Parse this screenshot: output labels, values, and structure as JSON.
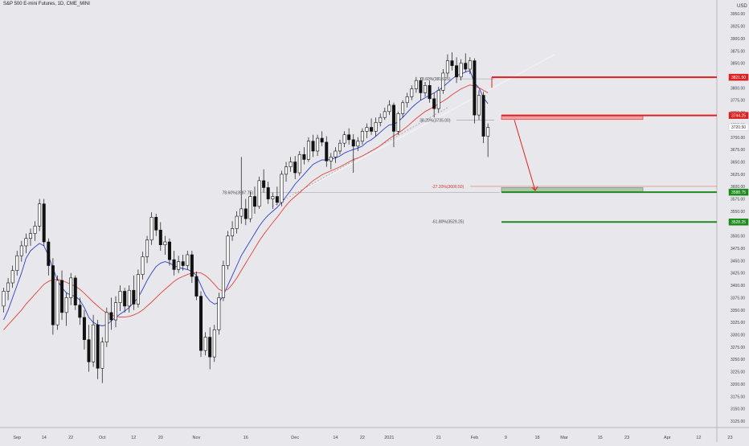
{
  "header": {
    "symbol_title": "S&P 500 E-mini Futures, 1D, CME_MINI",
    "currency": "USD"
  },
  "chart_data": {
    "type": "candlestick",
    "y_ticks": [
      3125,
      3150,
      3175,
      3200,
      3225,
      3250,
      3275,
      3300,
      3325,
      3350,
      3375,
      3400,
      3425,
      3450,
      3475,
      3500,
      3525,
      3550,
      3575,
      3600,
      3625,
      3650,
      3675,
      3700,
      3725,
      3750,
      3775,
      3800,
      3825,
      3850,
      3875,
      3900,
      3925,
      3950
    ],
    "y_tick_labels": [
      "3125.00",
      "3150.00",
      "3175.00",
      "3200.00",
      "3225.00",
      "3250.00",
      "3275.00",
      "3300.00",
      "3325.00",
      "3350.00",
      "3375.00",
      "3400.00",
      "3425.00",
      "3450.00",
      "3475.00",
      "3500.00",
      "3525.00",
      "3550.00",
      "3575.00",
      "3600.00",
      "3625.00",
      "3650.00",
      "3675.00",
      "3700.00",
      "3725.00",
      "3750.00",
      "3775.00",
      "3800.00",
      "3825.00",
      "3850.00",
      "3875.00",
      "3900.00",
      "3925.00",
      "3950.00"
    ],
    "ylim": [
      3112,
      3978
    ],
    "x_ticks": [
      {
        "label": "Sep",
        "bar": 3
      },
      {
        "label": "14",
        "bar": 9
      },
      {
        "label": "22",
        "bar": 15
      },
      {
        "label": "Oct",
        "bar": 22
      },
      {
        "label": "12",
        "bar": 29
      },
      {
        "label": "20",
        "bar": 35
      },
      {
        "label": "Nov",
        "bar": 43
      },
      {
        "label": "16",
        "bar": 54
      },
      {
        "label": "Dec",
        "bar": 65
      },
      {
        "label": "14",
        "bar": 74
      },
      {
        "label": "22",
        "bar": 80
      },
      {
        "label": "2021",
        "bar": 86
      },
      {
        "label": "21",
        "bar": 97
      },
      {
        "label": "Feb",
        "bar": 105
      },
      {
        "label": "9",
        "bar": 112
      },
      {
        "label": "18",
        "bar": 119
      },
      {
        "label": "Mar",
        "bar": 125
      },
      {
        "label": "15",
        "bar": 133
      },
      {
        "label": "23",
        "bar": 139
      },
      {
        "label": "Apr",
        "bar": 148
      },
      {
        "label": "12",
        "bar": 155
      },
      {
        "label": "23",
        "bar": 162
      }
    ],
    "candles": [
      {
        "o": 3358,
        "h": 3395,
        "l": 3345,
        "c": 3388
      },
      {
        "o": 3388,
        "h": 3415,
        "l": 3370,
        "c": 3405
      },
      {
        "o": 3405,
        "h": 3440,
        "l": 3395,
        "c": 3430
      },
      {
        "o": 3430,
        "h": 3470,
        "l": 3420,
        "c": 3460
      },
      {
        "o": 3460,
        "h": 3490,
        "l": 3448,
        "c": 3480
      },
      {
        "o": 3480,
        "h": 3505,
        "l": 3465,
        "c": 3495
      },
      {
        "o": 3495,
        "h": 3515,
        "l": 3480,
        "c": 3505
      },
      {
        "o": 3505,
        "h": 3530,
        "l": 3490,
        "c": 3520
      },
      {
        "o": 3520,
        "h": 3575,
        "l": 3510,
        "c": 3565
      },
      {
        "o": 3565,
        "h": 3575,
        "l": 3480,
        "c": 3488
      },
      {
        "o": 3488,
        "h": 3495,
        "l": 3420,
        "c": 3440
      },
      {
        "o": 3440,
        "h": 3455,
        "l": 3300,
        "c": 3320
      },
      {
        "o": 3320,
        "h": 3420,
        "l": 3310,
        "c": 3410
      },
      {
        "o": 3410,
        "h": 3430,
        "l": 3330,
        "c": 3345
      },
      {
        "o": 3345,
        "h": 3385,
        "l": 3318,
        "c": 3375
      },
      {
        "o": 3375,
        "h": 3425,
        "l": 3360,
        "c": 3415
      },
      {
        "o": 3415,
        "h": 3420,
        "l": 3350,
        "c": 3360
      },
      {
        "o": 3360,
        "h": 3375,
        "l": 3320,
        "c": 3335
      },
      {
        "o": 3335,
        "h": 3350,
        "l": 3270,
        "c": 3290
      },
      {
        "o": 3290,
        "h": 3320,
        "l": 3225,
        "c": 3245
      },
      {
        "o": 3245,
        "h": 3340,
        "l": 3235,
        "c": 3320
      },
      {
        "o": 3320,
        "h": 3330,
        "l": 3210,
        "c": 3232
      },
      {
        "o": 3232,
        "h": 3295,
        "l": 3202,
        "c": 3285
      },
      {
        "o": 3285,
        "h": 3355,
        "l": 3275,
        "c": 3345
      },
      {
        "o": 3345,
        "h": 3375,
        "l": 3310,
        "c": 3330
      },
      {
        "o": 3330,
        "h": 3378,
        "l": 3315,
        "c": 3365
      },
      {
        "o": 3365,
        "h": 3400,
        "l": 3348,
        "c": 3388
      },
      {
        "o": 3388,
        "h": 3395,
        "l": 3345,
        "c": 3358
      },
      {
        "o": 3358,
        "h": 3400,
        "l": 3345,
        "c": 3390
      },
      {
        "o": 3390,
        "h": 3420,
        "l": 3350,
        "c": 3362
      },
      {
        "o": 3362,
        "h": 3432,
        "l": 3355,
        "c": 3422
      },
      {
        "o": 3422,
        "h": 3468,
        "l": 3412,
        "c": 3458
      },
      {
        "o": 3458,
        "h": 3500,
        "l": 3445,
        "c": 3492
      },
      {
        "o": 3492,
        "h": 3548,
        "l": 3482,
        "c": 3538
      },
      {
        "o": 3538,
        "h": 3545,
        "l": 3500,
        "c": 3512
      },
      {
        "o": 3512,
        "h": 3528,
        "l": 3470,
        "c": 3482
      },
      {
        "o": 3482,
        "h": 3500,
        "l": 3462,
        "c": 3488
      },
      {
        "o": 3488,
        "h": 3495,
        "l": 3440,
        "c": 3452
      },
      {
        "o": 3452,
        "h": 3470,
        "l": 3420,
        "c": 3432
      },
      {
        "o": 3432,
        "h": 3460,
        "l": 3425,
        "c": 3448
      },
      {
        "o": 3448,
        "h": 3462,
        "l": 3430,
        "c": 3440
      },
      {
        "o": 3440,
        "h": 3470,
        "l": 3432,
        "c": 3462
      },
      {
        "o": 3462,
        "h": 3470,
        "l": 3405,
        "c": 3418
      },
      {
        "o": 3418,
        "h": 3428,
        "l": 3370,
        "c": 3378
      },
      {
        "o": 3378,
        "h": 3388,
        "l": 3255,
        "c": 3268
      },
      {
        "o": 3268,
        "h": 3305,
        "l": 3258,
        "c": 3295
      },
      {
        "o": 3295,
        "h": 3315,
        "l": 3230,
        "c": 3255
      },
      {
        "o": 3255,
        "h": 3320,
        "l": 3245,
        "c": 3310
      },
      {
        "o": 3310,
        "h": 3385,
        "l": 3300,
        "c": 3375
      },
      {
        "o": 3375,
        "h": 3450,
        "l": 3368,
        "c": 3440
      },
      {
        "o": 3440,
        "h": 3510,
        "l": 3432,
        "c": 3500
      },
      {
        "o": 3500,
        "h": 3530,
        "l": 3490,
        "c": 3515
      },
      {
        "o": 3515,
        "h": 3550,
        "l": 3505,
        "c": 3540
      },
      {
        "o": 3540,
        "h": 3660,
        "l": 3525,
        "c": 3555
      },
      {
        "o": 3555,
        "h": 3575,
        "l": 3522,
        "c": 3535
      },
      {
        "o": 3535,
        "h": 3590,
        "l": 3528,
        "c": 3580
      },
      {
        "o": 3580,
        "h": 3600,
        "l": 3545,
        "c": 3560
      },
      {
        "o": 3560,
        "h": 3620,
        "l": 3555,
        "c": 3612
      },
      {
        "o": 3612,
        "h": 3635,
        "l": 3588,
        "c": 3598
      },
      {
        "o": 3598,
        "h": 3610,
        "l": 3565,
        "c": 3575
      },
      {
        "o": 3575,
        "h": 3588,
        "l": 3555,
        "c": 3580
      },
      {
        "o": 3580,
        "h": 3600,
        "l": 3562,
        "c": 3568
      },
      {
        "o": 3568,
        "h": 3632,
        "l": 3560,
        "c": 3625
      },
      {
        "o": 3625,
        "h": 3650,
        "l": 3610,
        "c": 3640
      },
      {
        "o": 3640,
        "h": 3660,
        "l": 3630,
        "c": 3650
      },
      {
        "o": 3650,
        "h": 3662,
        "l": 3615,
        "c": 3628
      },
      {
        "o": 3628,
        "h": 3672,
        "l": 3622,
        "c": 3665
      },
      {
        "o": 3665,
        "h": 3680,
        "l": 3645,
        "c": 3655
      },
      {
        "o": 3655,
        "h": 3700,
        "l": 3650,
        "c": 3692
      },
      {
        "o": 3692,
        "h": 3705,
        "l": 3660,
        "c": 3672
      },
      {
        "o": 3672,
        "h": 3705,
        "l": 3662,
        "c": 3698
      },
      {
        "o": 3698,
        "h": 3712,
        "l": 3682,
        "c": 3690
      },
      {
        "o": 3690,
        "h": 3702,
        "l": 3640,
        "c": 3652
      },
      {
        "o": 3652,
        "h": 3668,
        "l": 3635,
        "c": 3660
      },
      {
        "o": 3660,
        "h": 3680,
        "l": 3648,
        "c": 3672
      },
      {
        "o": 3672,
        "h": 3695,
        "l": 3665,
        "c": 3688
      },
      {
        "o": 3688,
        "h": 3712,
        "l": 3680,
        "c": 3705
      },
      {
        "o": 3705,
        "h": 3718,
        "l": 3685,
        "c": 3695
      },
      {
        "o": 3695,
        "h": 3706,
        "l": 3628,
        "c": 3682
      },
      {
        "o": 3682,
        "h": 3700,
        "l": 3672,
        "c": 3692
      },
      {
        "o": 3692,
        "h": 3718,
        "l": 3685,
        "c": 3712
      },
      {
        "o": 3712,
        "h": 3728,
        "l": 3698,
        "c": 3720
      },
      {
        "o": 3720,
        "h": 3738,
        "l": 3705,
        "c": 3712
      },
      {
        "o": 3712,
        "h": 3740,
        "l": 3702,
        "c": 3730
      },
      {
        "o": 3730,
        "h": 3748,
        "l": 3722,
        "c": 3740
      },
      {
        "o": 3740,
        "h": 3760,
        "l": 3735,
        "c": 3752
      },
      {
        "o": 3752,
        "h": 3775,
        "l": 3745,
        "c": 3765
      },
      {
        "o": 3765,
        "h": 3770,
        "l": 3680,
        "c": 3712
      },
      {
        "o": 3712,
        "h": 3752,
        "l": 3705,
        "c": 3748
      },
      {
        "o": 3748,
        "h": 3775,
        "l": 3740,
        "c": 3770
      },
      {
        "o": 3770,
        "h": 3790,
        "l": 3760,
        "c": 3782
      },
      {
        "o": 3782,
        "h": 3805,
        "l": 3775,
        "c": 3798
      },
      {
        "o": 3798,
        "h": 3822,
        "l": 3790,
        "c": 3815
      },
      {
        "o": 3815,
        "h": 3820,
        "l": 3775,
        "c": 3790
      },
      {
        "o": 3790,
        "h": 3812,
        "l": 3782,
        "c": 3805
      },
      {
        "o": 3805,
        "h": 3815,
        "l": 3770,
        "c": 3778
      },
      {
        "o": 3778,
        "h": 3790,
        "l": 3740,
        "c": 3758
      },
      {
        "o": 3758,
        "h": 3802,
        "l": 3750,
        "c": 3795
      },
      {
        "o": 3795,
        "h": 3838,
        "l": 3788,
        "c": 3830
      },
      {
        "o": 3830,
        "h": 3868,
        "l": 3822,
        "c": 3855
      },
      {
        "o": 3855,
        "h": 3872,
        "l": 3835,
        "c": 3845
      },
      {
        "o": 3845,
        "h": 3862,
        "l": 3810,
        "c": 3822
      },
      {
        "o": 3822,
        "h": 3858,
        "l": 3815,
        "c": 3850
      },
      {
        "o": 3850,
        "h": 3870,
        "l": 3832,
        "c": 3838
      },
      {
        "o": 3838,
        "h": 3862,
        "l": 3828,
        "c": 3855
      },
      {
        "o": 3855,
        "h": 3860,
        "l": 3728,
        "c": 3745
      },
      {
        "o": 3745,
        "h": 3795,
        "l": 3735,
        "c": 3785
      },
      {
        "o": 3785,
        "h": 3792,
        "l": 3688,
        "c": 3702
      },
      {
        "o": 3702,
        "h": 3728,
        "l": 3660,
        "c": 3720
      }
    ],
    "series": [
      {
        "name": "",
        "color": "#2c3cc8",
        "values": [
          3330,
          3350,
          3375,
          3400,
          3425,
          3455,
          3470,
          3478,
          3485,
          3480,
          3460,
          3435,
          3410,
          3395,
          3385,
          3380,
          3378,
          3370,
          3355,
          3335,
          3325,
          3320,
          3318,
          3320,
          3328,
          3335,
          3342,
          3348,
          3355,
          3365,
          3375,
          3392,
          3410,
          3425,
          3438,
          3445,
          3448,
          3445,
          3440,
          3436,
          3434,
          3432,
          3428,
          3420,
          3400,
          3380,
          3368,
          3362,
          3365,
          3380,
          3400,
          3420,
          3440,
          3460,
          3475,
          3490,
          3505,
          3520,
          3532,
          3542,
          3550,
          3558,
          3568,
          3580,
          3592,
          3605,
          3615,
          3625,
          3635,
          3645,
          3650,
          3654,
          3654,
          3655,
          3658,
          3662,
          3668,
          3672,
          3675,
          3678,
          3682,
          3690,
          3695,
          3702,
          3710,
          3718,
          3725,
          3726,
          3732,
          3740,
          3750,
          3760,
          3768,
          3775,
          3780,
          3785,
          3790,
          3795,
          3802,
          3810,
          3818,
          3825,
          3828,
          3832,
          3835,
          3810,
          3800,
          3780,
          3768
        ]
      },
      {
        "name": "",
        "color": "#e0403a",
        "values": [
          3310,
          3320,
          3330,
          3340,
          3350,
          3362,
          3372,
          3382,
          3392,
          3402,
          3408,
          3412,
          3412,
          3410,
          3406,
          3402,
          3398,
          3392,
          3384,
          3375,
          3366,
          3358,
          3350,
          3344,
          3340,
          3337,
          3336,
          3336,
          3337,
          3340,
          3344,
          3350,
          3358,
          3366,
          3375,
          3384,
          3392,
          3400,
          3408,
          3414,
          3418,
          3422,
          3425,
          3426,
          3425,
          3420,
          3412,
          3402,
          3392,
          3388,
          3392,
          3402,
          3415,
          3430,
          3445,
          3460,
          3475,
          3490,
          3503,
          3515,
          3527,
          3538,
          3550,
          3562,
          3572,
          3580,
          3588,
          3596,
          3604,
          3612,
          3618,
          3624,
          3628,
          3632,
          3636,
          3640,
          3645,
          3650,
          3655,
          3658,
          3662,
          3667,
          3672,
          3677,
          3683,
          3690,
          3697,
          3703,
          3708,
          3715,
          3722,
          3730,
          3738,
          3745,
          3752,
          3757,
          3762,
          3768,
          3773,
          3779,
          3786,
          3792,
          3798,
          3802,
          3806,
          3804,
          3800,
          3795,
          3790
        ]
      }
    ],
    "price_labels": [
      {
        "text": "3821.50",
        "value": 3821.5,
        "bg": "#e02020",
        "color": "#ffffff"
      },
      {
        "text": "3744.25",
        "value": 3744.25,
        "bg": "#e02020",
        "color": "#ffffff"
      },
      {
        "text": "3720.50",
        "value": 3720.5,
        "bg": "#ffffff",
        "color": "#333333"
      },
      {
        "text": "3588.75",
        "value": 3588.75,
        "bg": "#1e8a1e",
        "color": "#ffffff"
      },
      {
        "text": "3528.25",
        "value": 3528.25,
        "bg": "#1e8a1e",
        "color": "#ffffff"
      }
    ],
    "annotations": [
      {
        "text": "78.60%(3818.25)",
        "value": 3818.25,
        "bar": 100,
        "color": "#444444"
      },
      {
        "text": "38.20%(3735.00)",
        "value": 3735.0,
        "bar": 100,
        "color": "#444444"
      },
      {
        "text": "78.60%(3587.75)",
        "value": 3587.75,
        "bar": 56,
        "color": "#444444"
      },
      {
        "text": "-27.20%(3600.50)",
        "value": 3600.5,
        "bar": 103,
        "color": "#d03030"
      },
      {
        "text": "-61.80%(3529.25)",
        "value": 3529.25,
        "bar": 103,
        "color": "#444444"
      }
    ]
  }
}
